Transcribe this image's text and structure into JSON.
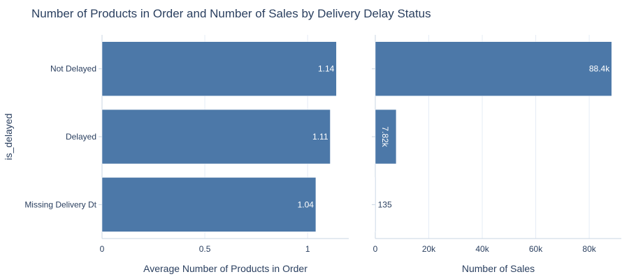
{
  "title": "Number of Products in Order and Number of Sales by Delivery Delay Status",
  "colors": {
    "bar": "#4c78a8",
    "grid": "#e5ecf6",
    "axis": "#c8d4e3",
    "text": "#2a3f5f",
    "inside_label": "#ffffff"
  },
  "chart_data": {
    "type": "bar",
    "orientation": "horizontal",
    "ylabel": "is_delayed",
    "categories": [
      "Not Delayed",
      "Delayed",
      "Missing Delivery Dt"
    ],
    "panels": [
      {
        "xlabel": "Average Number of Products in Order",
        "values": [
          1.14,
          1.11,
          1.04
        ],
        "data_labels": [
          "1.14",
          "1.11",
          "1.04"
        ],
        "xlim": [
          0,
          1.2
        ],
        "xticks": [
          0,
          0.5,
          1
        ],
        "xtick_labels": [
          "0",
          "0.5",
          "1"
        ],
        "grid": true
      },
      {
        "xlabel": "Number of Sales",
        "values": [
          88400,
          7820,
          135
        ],
        "data_labels": [
          "88.4k",
          "7.82k",
          "135"
        ],
        "xlim": [
          0,
          92000
        ],
        "xticks": [
          0,
          20000,
          40000,
          60000,
          80000
        ],
        "xtick_labels": [
          "0",
          "20k",
          "40k",
          "60k",
          "80k"
        ],
        "grid": true
      }
    ]
  }
}
